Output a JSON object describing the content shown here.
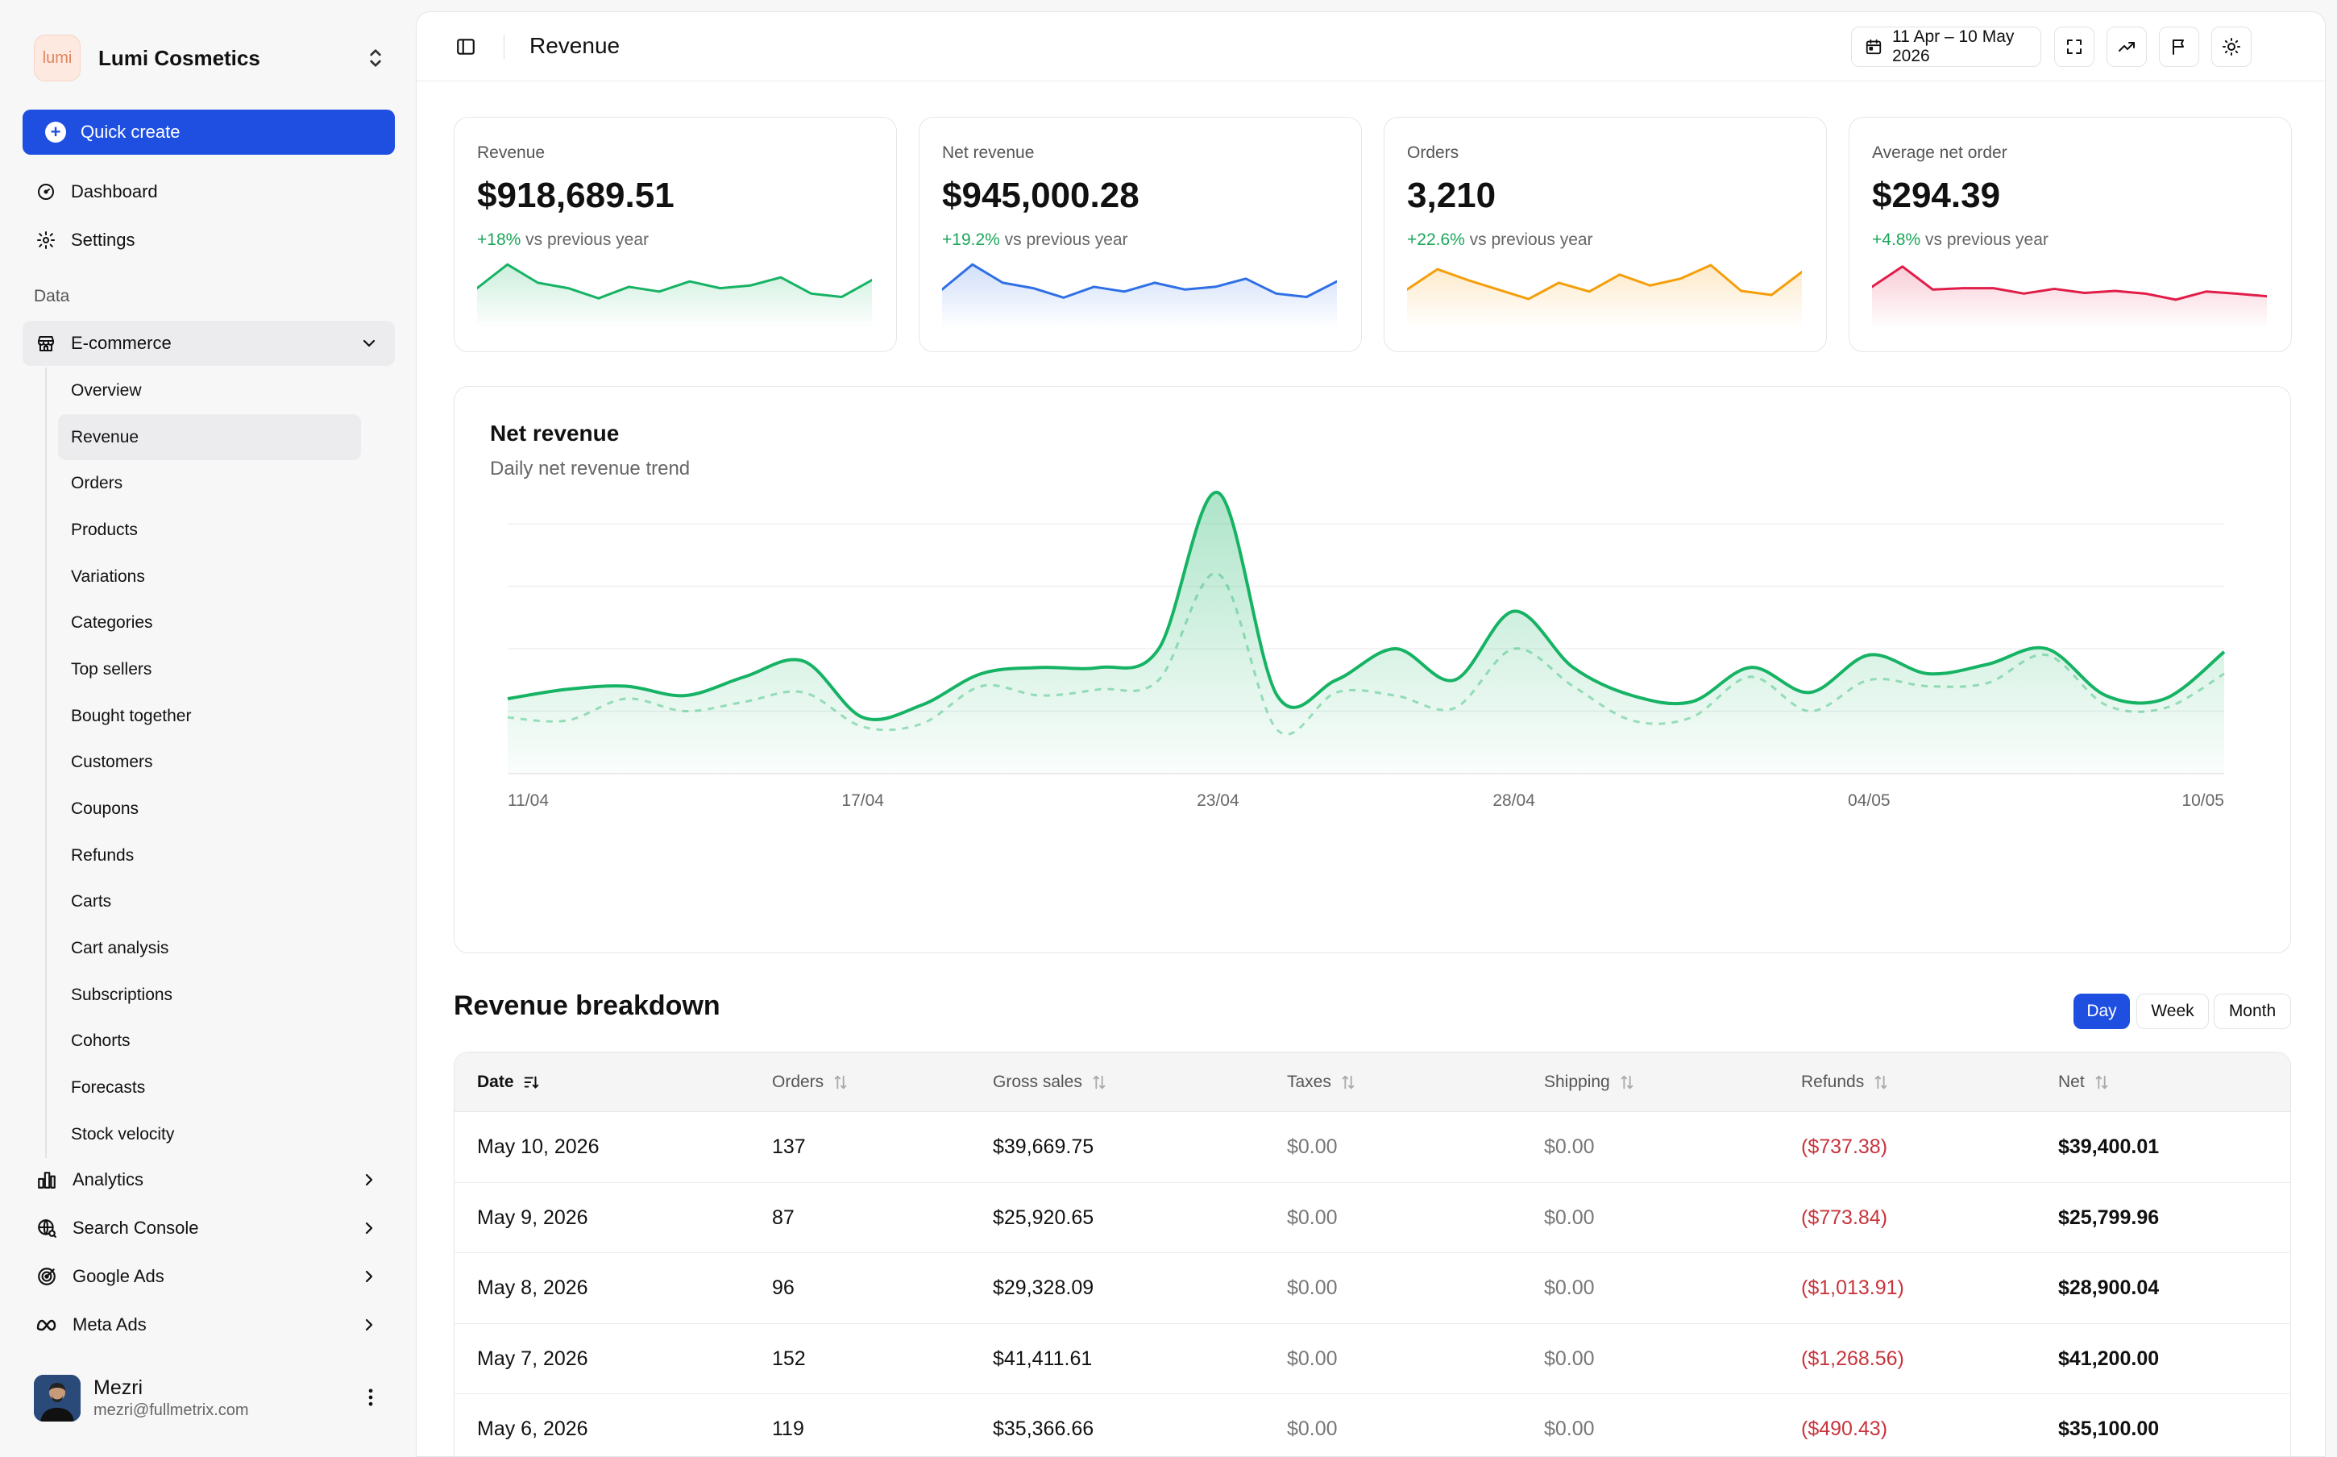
{
  "brand": {
    "logo_text": "lumi",
    "name": "Lumi Cosmetics"
  },
  "sidebar": {
    "quick_create": "Quick create",
    "top_items": [
      {
        "label": "Dashboard",
        "icon": "dashboard-icon"
      },
      {
        "label": "Settings",
        "icon": "gear-icon"
      }
    ],
    "section_label": "Data",
    "group": {
      "label": "E-commerce",
      "icon": "store-icon"
    },
    "sub_items": [
      "Overview",
      "Revenue",
      "Orders",
      "Products",
      "Variations",
      "Categories",
      "Top sellers",
      "Bought together",
      "Customers",
      "Coupons",
      "Refunds",
      "Carts",
      "Cart analysis",
      "Subscriptions",
      "Cohorts",
      "Forecasts",
      "Stock velocity"
    ],
    "active_sub_item": "Revenue",
    "more_items": [
      {
        "label": "Analytics",
        "icon": "bar-chart-icon"
      },
      {
        "label": "Search Console",
        "icon": "globe-search-icon"
      },
      {
        "label": "Google Ads",
        "icon": "target-icon"
      },
      {
        "label": "Meta Ads",
        "icon": "meta-icon"
      }
    ]
  },
  "user": {
    "name": "Mezri",
    "email": "mezri@fullmetrix.com"
  },
  "header": {
    "title": "Revenue",
    "date_range": "11 Apr – 10 May 2026",
    "icons": [
      "expand-icon",
      "trend-icon",
      "flag-icon",
      "sun-icon"
    ]
  },
  "kpis": [
    {
      "label": "Revenue",
      "value": "$918,689.51",
      "change": "+18%",
      "change_suffix": "vs previous year",
      "color": "#16b364",
      "spark": [
        60,
        95,
        68,
        60,
        45,
        62,
        55,
        70,
        60,
        64,
        76,
        52,
        47,
        72
      ]
    },
    {
      "label": "Net revenue",
      "value": "$945,000.28",
      "change": "+19.2%",
      "change_suffix": "vs previous year",
      "color": "#2f6fe6",
      "spark": [
        58,
        95,
        68,
        60,
        46,
        62,
        55,
        68,
        58,
        62,
        74,
        52,
        47,
        70
      ]
    },
    {
      "label": "Orders",
      "value": "3,210",
      "change": "+22.6%",
      "change_suffix": "vs previous year",
      "color": "#f59e0b",
      "spark": [
        58,
        88,
        72,
        58,
        44,
        68,
        55,
        80,
        64,
        74,
        94,
        56,
        50,
        84
      ]
    },
    {
      "label": "Average net order",
      "value": "$294.39",
      "change": "+4.8%",
      "change_suffix": "vs previous year",
      "color": "#e11d48",
      "spark": [
        62,
        92,
        58,
        60,
        60,
        52,
        59,
        53,
        56,
        52,
        43,
        55,
        52,
        48
      ]
    }
  ],
  "net_revenue_chart": {
    "title": "Net revenue",
    "subtitle": "Daily net revenue trend",
    "x_labels": [
      "11/04",
      "17/04",
      "23/04",
      "28/04",
      "04/05",
      "10/05"
    ],
    "color": "#16b364"
  },
  "chart_data": {
    "type": "area",
    "title": "Net revenue",
    "subtitle": "Daily net revenue trend",
    "x": [
      "11/04",
      "12/04",
      "13/04",
      "14/04",
      "15/04",
      "16/04",
      "17/04",
      "18/04",
      "19/04",
      "20/04",
      "21/04",
      "22/04",
      "23/04",
      "24/04",
      "25/04",
      "26/04",
      "27/04",
      "28/04",
      "29/04",
      "30/04",
      "01/05",
      "02/05",
      "03/05",
      "04/05",
      "05/05",
      "06/05",
      "07/05",
      "08/05",
      "09/05",
      "10/05"
    ],
    "x_tick_labels": [
      "11/04",
      "17/04",
      "23/04",
      "28/04",
      "04/05",
      "10/05"
    ],
    "series": [
      {
        "values": [
          12,
          13.5,
          14,
          12.5,
          15.5,
          18,
          9,
          11,
          16,
          17,
          17,
          20,
          45,
          12.5,
          15,
          20,
          15,
          26,
          17,
          12.5,
          11.5,
          17,
          13,
          19,
          16,
          17.5,
          20,
          12.5,
          12,
          19.5
        ],
        "style": "solid"
      },
      {
        "values": [
          9,
          8.5,
          12,
          10,
          11.5,
          13,
          7.5,
          8,
          14,
          12.5,
          13.5,
          15,
          32,
          7,
          13,
          12.5,
          10.5,
          20,
          14,
          8.5,
          9,
          15.5,
          10,
          15,
          14,
          14.5,
          19,
          11,
          10.5,
          16
        ],
        "style": "dashed"
      }
    ],
    "ylim": [
      0,
      40
    ],
    "grid": true
  },
  "breakdown": {
    "title": "Revenue breakdown",
    "periods": [
      "Day",
      "Week",
      "Month"
    ],
    "active_period": "Day",
    "columns": [
      "Date",
      "Orders",
      "Gross sales",
      "Taxes",
      "Shipping",
      "Refunds",
      "Net"
    ],
    "rows": [
      [
        "May 10, 2026",
        "137",
        "$39,669.75",
        "$0.00",
        "$0.00",
        "($737.38)",
        "$39,400.01"
      ],
      [
        "May 9, 2026",
        "87",
        "$25,920.65",
        "$0.00",
        "$0.00",
        "($773.84)",
        "$25,799.96"
      ],
      [
        "May 8, 2026",
        "96",
        "$29,328.09",
        "$0.00",
        "$0.00",
        "($1,013.91)",
        "$28,900.04"
      ],
      [
        "May 7, 2026",
        "152",
        "$41,411.61",
        "$0.00",
        "$0.00",
        "($1,268.56)",
        "$41,200.00"
      ],
      [
        "May 6, 2026",
        "119",
        "$35,366.66",
        "$0.00",
        "$0.00",
        "($490.43)",
        "$35,100.00"
      ]
    ]
  }
}
